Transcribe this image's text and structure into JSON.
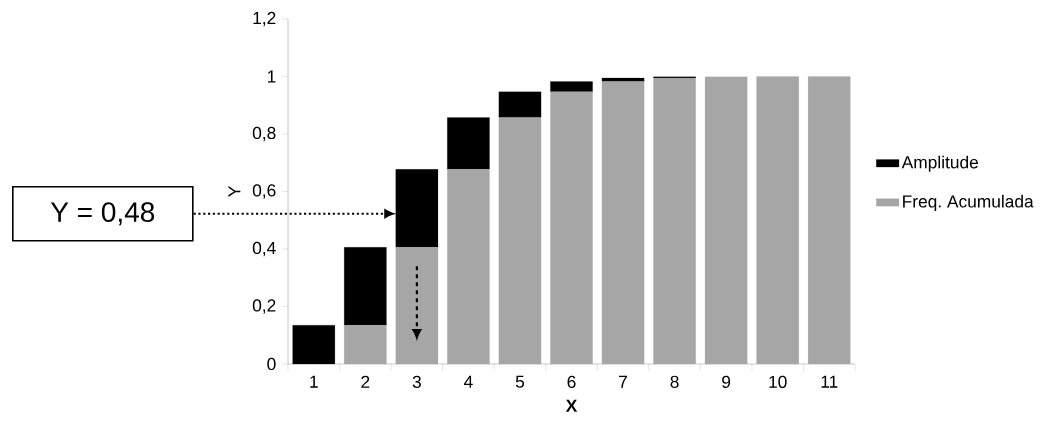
{
  "chart_data": {
    "type": "bar",
    "stacked": true,
    "xlabel": "X",
    "ylabel": "Y",
    "categories": [
      "1",
      "2",
      "3",
      "4",
      "5",
      "6",
      "7",
      "8",
      "9",
      "10",
      "11"
    ],
    "series": [
      {
        "name": "Freq. Acumulada",
        "color": "#a6a6a6",
        "values": [
          0,
          0.135,
          0.406,
          0.677,
          0.857,
          0.947,
          0.983,
          0.995,
          0.999,
          1,
          1
        ]
      },
      {
        "name": "Amplitude",
        "color": "#000000",
        "values": [
          0.135,
          0.271,
          0.271,
          0.18,
          0.09,
          0.036,
          0.012,
          0.004,
          null,
          0,
          0
        ]
      }
    ],
    "ylim": [
      0,
      1.2
    ],
    "yticks": [
      {
        "value": 0,
        "label": "0"
      },
      {
        "value": 0.2,
        "label": "0,2"
      },
      {
        "value": 0.4,
        "label": "0,4"
      },
      {
        "value": 0.6,
        "label": "0,6"
      },
      {
        "value": 0.8,
        "label": "0,8"
      },
      {
        "value": 1,
        "label": "1"
      },
      {
        "value": 1.2,
        "label": "1,2"
      }
    ],
    "legend": "right",
    "annotations": [
      "Y = 0,48"
    ]
  }
}
